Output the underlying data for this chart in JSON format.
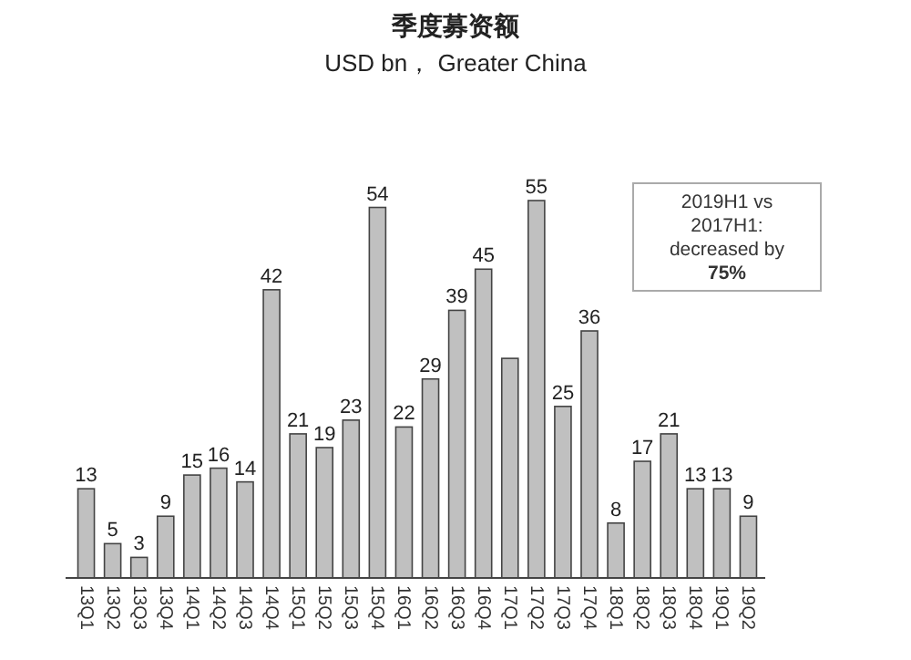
{
  "chart_data": {
    "type": "bar",
    "title": "季度募资额",
    "subtitle": "USD bn， Greater China",
    "categories": [
      "13Q1",
      "13Q2",
      "13Q3",
      "13Q4",
      "14Q1",
      "14Q2",
      "14Q3",
      "14Q4",
      "15Q1",
      "15Q2",
      "15Q3",
      "15Q4",
      "16Q1",
      "16Q2",
      "16Q3",
      "16Q4",
      "17Q1",
      "17Q2",
      "17Q3",
      "17Q4",
      "18Q1",
      "18Q2",
      "18Q3",
      "18Q4",
      "19Q1",
      "19Q2"
    ],
    "values": [
      13,
      5,
      3,
      9,
      15,
      16,
      14,
      42,
      21,
      19,
      23,
      54,
      22,
      29,
      39,
      45,
      32,
      55,
      25,
      36,
      8,
      17,
      21,
      13,
      13,
      9
    ],
    "value_labels": [
      "13",
      "5",
      "3",
      "9",
      "15",
      "16",
      "14",
      "42",
      "21",
      "19",
      "23",
      "54",
      "22",
      "29",
      "39",
      "45",
      null,
      "55",
      "25",
      "36",
      "8",
      "17",
      "21",
      "13",
      "13",
      "9"
    ],
    "color": "#c0c0c0",
    "annotations": [
      {
        "text": "2019H1 vs 2017H1: decreased by **75%**"
      }
    ]
  }
}
